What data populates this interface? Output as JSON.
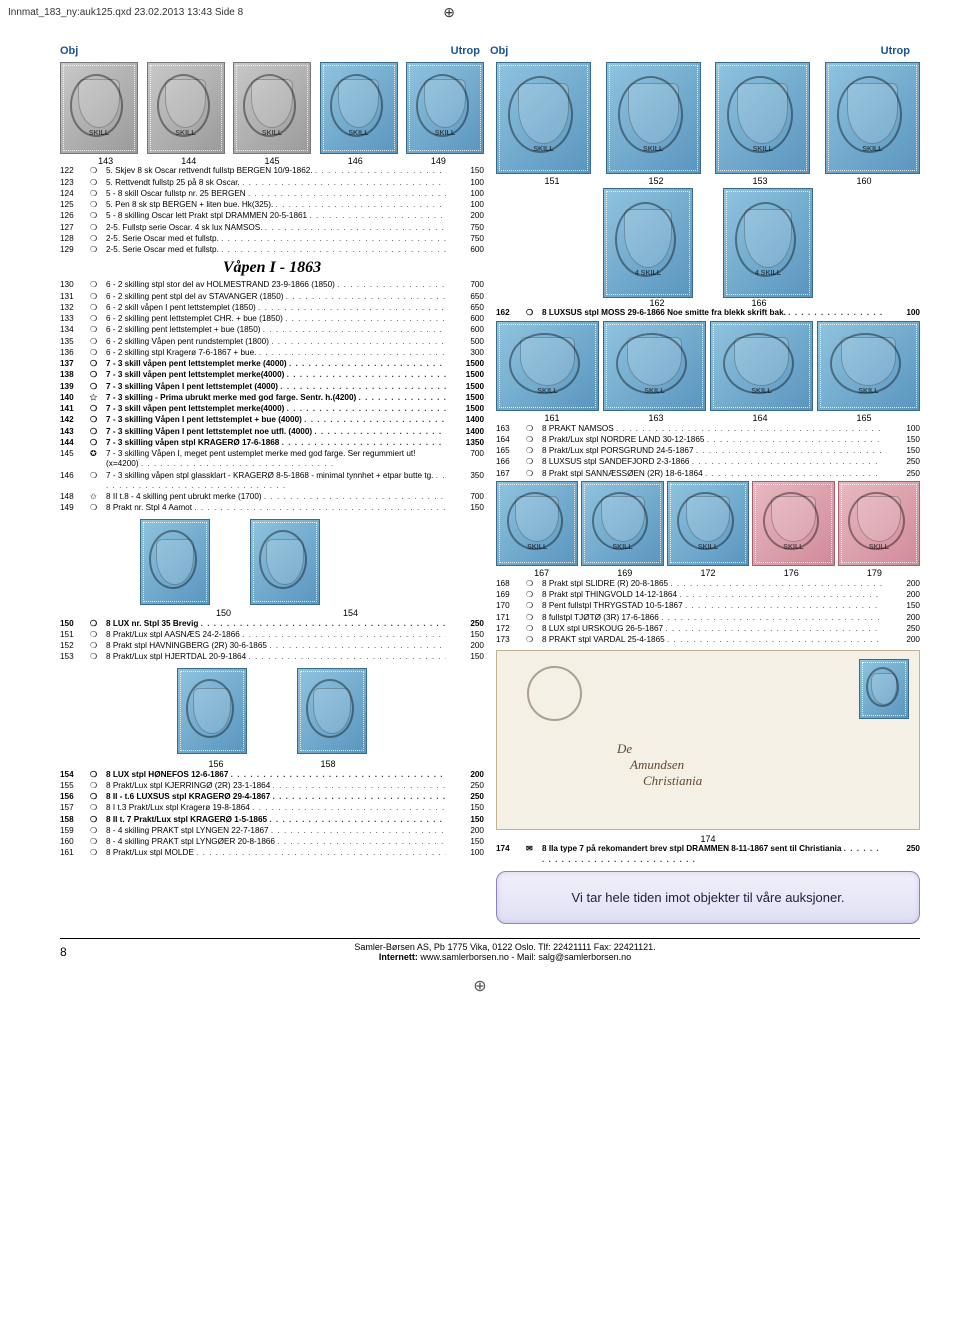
{
  "meta": {
    "filepath": "Innmat_183_ny:auk125.qxd  23.02.2013  13:43  Side 8"
  },
  "headers": {
    "obj": "Obj",
    "utrop": "Utrop"
  },
  "stamp_style": {
    "gray_bg": "#b0b0b0",
    "blue_bg": "#6fa6cc",
    "pink_bg": "#d896a4",
    "border": "#4a6a8a"
  },
  "top_left_row": {
    "labels": [
      "143",
      "144",
      "145",
      "146",
      "149"
    ],
    "colors": [
      "gray",
      "gray",
      "gray",
      "blue",
      "blue"
    ]
  },
  "top_right_row": {
    "labels": [
      "151",
      "152",
      "153",
      "160"
    ],
    "colors": [
      "blue",
      "blue",
      "blue",
      "blue"
    ]
  },
  "section_title": "Våpen I - 1863",
  "lots_left_a": [
    {
      "n": "122",
      "s": "❍",
      "d": "5. Skjev 8 sk Oscar rettvendt fullstp BERGEN 10/9-1862.",
      "p": "150",
      "b": false
    },
    {
      "n": "123",
      "s": "❍",
      "d": "5. Rettvendt fullstp 25 på 8 sk Oscar.",
      "p": "100",
      "b": false
    },
    {
      "n": "124",
      "s": "❍",
      "d": "5 - 8 skill Oscar  fullstp nr. 25 BERGEN",
      "p": "100",
      "b": false
    },
    {
      "n": "125",
      "s": "❍",
      "d": "5. Pen 8 sk stp BERGEN + liten bue. Hk(325).",
      "p": "100",
      "b": false
    },
    {
      "n": "126",
      "s": "❍",
      "d": "5 - 8 skilling Oscar lett Prakt stpl DRAMMEN 20-5-1861",
      "p": "200",
      "b": false
    },
    {
      "n": "127",
      "s": "❍",
      "d": "2-5. Fullstp serie Oscar. 4 sk lux NAMSOS.",
      "p": "750",
      "b": false
    },
    {
      "n": "128",
      "s": "❍",
      "d": "2-5. Serie Oscar med et fullstp.",
      "p": "750",
      "b": false
    },
    {
      "n": "129",
      "s": "❍",
      "d": "2-5. Serie Oscar med et fullstp.",
      "p": "600",
      "b": false
    }
  ],
  "lots_left_b": [
    {
      "n": "130",
      "s": "❍",
      "d": "6 - 2 skilling stpl stor del av HOLMESTRAND 23-9-1866 (1850)",
      "p": "700",
      "b": false
    },
    {
      "n": "131",
      "s": "❍",
      "d": "6 - 2 skilling pent stpl del av STAVANGER (1850)",
      "p": "650",
      "b": false
    },
    {
      "n": "132",
      "s": "❍",
      "d": "6 - 2 skill våpen I pent lettstemplet (1850)",
      "p": "650",
      "b": false
    },
    {
      "n": "133",
      "s": "❍",
      "d": "6 - 2 skilling pent lettstemplet CHR. + bue (1850)",
      "p": "600",
      "b": false
    },
    {
      "n": "134",
      "s": "❍",
      "d": "6 - 2 skilling pent lettstemplet + bue (1850)",
      "p": "600",
      "b": false
    },
    {
      "n": "135",
      "s": "❍",
      "d": "6 - 2 skilling Våpen pent rundstemplet (1800)",
      "p": "500",
      "b": false
    },
    {
      "n": "136",
      "s": "❍",
      "d": "6 - 2 skilling stpl Kragerø 7-6-1867 + bue.",
      "p": "300",
      "b": false
    },
    {
      "n": "137",
      "s": "❍",
      "d": "7 - 3 skill våpen pent lettstemplet merke (4000)",
      "p": "1500",
      "b": true
    },
    {
      "n": "138",
      "s": "❍",
      "d": "7 - 3 skill våpen pent lettstemplet merke(4000)",
      "p": "1500",
      "b": true
    },
    {
      "n": "139",
      "s": "❍",
      "d": "7 - 3 skilling Våpen I pent lettstemplet (4000)",
      "p": "1500",
      "b": true
    },
    {
      "n": "140",
      "s": "✩",
      "d": "7 - 3 skilling - Prima ubrukt merke med god farge. Sentr. h.(4200)",
      "p": "1500",
      "b": true
    },
    {
      "n": "141",
      "s": "❍",
      "d": "7 - 3 skill våpen pent lettstemplet merke(4000)",
      "p": "1500",
      "b": true
    },
    {
      "n": "142",
      "s": "❍",
      "d": "7 - 3 skilling Våpen I pent lettstemplet + bue (4000)",
      "p": "1400",
      "b": true
    },
    {
      "n": "143",
      "s": "❍",
      "d": "7 - 3 skilling Våpen I pent lettstemplet noe utfl. (4000)",
      "p": "1400",
      "b": true
    },
    {
      "n": "144",
      "s": "❍",
      "d": "7 - 3 skilling våpen stpl KRAGERØ 17-6-1868",
      "p": "1350",
      "b": true
    },
    {
      "n": "145",
      "s": "✪",
      "d": "7 - 3 skilling Våpen I, meget pent ustemplet merke med god farge. Ser regummiert ut! (x=4200)",
      "p": "700",
      "b": false
    },
    {
      "n": "146",
      "s": "❍",
      "d": "7 - 3 skilling våpen stpl glassklart - KRAGERØ 8-5-1868 - minimal tynnhet + etpar butte tg.",
      "p": "350",
      "b": false
    },
    {
      "n": "148",
      "s": "✩",
      "d": "8 II t.8 - 4 skilling pent ubrukt merke (1700)",
      "p": "700",
      "b": false
    },
    {
      "n": "149",
      "s": "❍",
      "d": "8 Prakt nr. Stpl 4 Aamot",
      "p": "150",
      "b": false
    }
  ],
  "left_pair_labels": [
    "150",
    "154"
  ],
  "lots_left_c": [
    {
      "n": "150",
      "s": "❍",
      "d": "8 LUX nr. Stpl 35 Brevig",
      "p": "250",
      "b": true
    },
    {
      "n": "151",
      "s": "❍",
      "d": "8 Prakt/Lux stpl AASNÆS 24-2-1866",
      "p": "150",
      "b": false
    },
    {
      "n": "152",
      "s": "❍",
      "d": "8 Prakt stpl HAVNINGBERG (2R) 30-6-1865",
      "p": "200",
      "b": false
    },
    {
      "n": "153",
      "s": "❍",
      "d": "8 Prakt/Lux stpl HJERTDAL 20-9-1864",
      "p": "150",
      "b": false
    }
  ],
  "left_bottom_labels": [
    "156",
    "158"
  ],
  "lots_left_d": [
    {
      "n": "154",
      "s": "❍",
      "d": "8 LUX stpl HØNEFOS 12-6-1867",
      "p": "200",
      "b": true
    },
    {
      "n": "155",
      "s": "❍",
      "d": "8 Prakt/Lux stpl KJERRINGØ (2R) 23-1-1864",
      "p": "250",
      "b": false
    },
    {
      "n": "156",
      "s": "❍",
      "d": "8 II -  t.6 LUXSUS stpl KRAGERØ 29-4-1867",
      "p": "250",
      "b": true
    },
    {
      "n": "157",
      "s": "❍",
      "d": "8 I t.3 Prakt/Lux stpl Kragerø 19-8-1864",
      "p": "150",
      "b": false
    },
    {
      "n": "158",
      "s": "❍",
      "d": "8 II t. 7 Prakt/Lux stpl KRAGERØ 1-5-1865",
      "p": "150",
      "b": true
    },
    {
      "n": "159",
      "s": "❍",
      "d": "8 - 4 skilling PRAKT stpl LYNGEN 22-7-1867",
      "p": "200",
      "b": false
    },
    {
      "n": "160",
      "s": "❍",
      "d": "8 - 4 skilling PRAKT stpl LYNGØER 20-8-1866",
      "p": "150",
      "b": false
    },
    {
      "n": "161",
      "s": "❍",
      "d": "8 Prakt/Lux stpl MOLDE",
      "p": "100",
      "b": false
    }
  ],
  "big_pair_labels": [
    "162",
    "166"
  ],
  "lots_right_a": [
    {
      "n": "162",
      "s": "❍",
      "d": "8 LUXSUS stpl MOSS 29-6-1866 Noe smitte fra blekk skrift bak.",
      "p": "100",
      "b": true
    }
  ],
  "mid_row_labels": [
    "161",
    "163",
    "164",
    "165"
  ],
  "lots_right_b": [
    {
      "n": "163",
      "s": "❍",
      "d": "8 PRAKT NAMSOS",
      "p": "100",
      "b": false
    },
    {
      "n": "164",
      "s": "❍",
      "d": "8 Prakt/Lux stpl NORDRE LAND 30-12-1865",
      "p": "150",
      "b": false
    },
    {
      "n": "165",
      "s": "❍",
      "d": "8 Prakt/Lux stpl PORSGRUND 24-5-1867",
      "p": "150",
      "b": false
    },
    {
      "n": "166",
      "s": "❍",
      "d": "8 LUXSUS stpl SANDEFJORD 2-3-1866",
      "p": "250",
      "b": false
    },
    {
      "n": "167",
      "s": "❍",
      "d": "8 Prakt stpl SANNÆSSØEN (2R) 18-6-1864",
      "p": "250",
      "b": false
    }
  ],
  "wide_row_labels": [
    "167",
    "169",
    "172",
    "176",
    "179"
  ],
  "wide_row_colors": [
    "blue",
    "blue",
    "blue",
    "pink",
    "pink"
  ],
  "lots_right_c": [
    {
      "n": "168",
      "s": "❍",
      "d": "8 Prakt stpl SLIDRE (R) 20-8-1865",
      "p": "200",
      "b": false
    },
    {
      "n": "169",
      "s": "❍",
      "d": "8 Prakt stpl THINGVOLD 14-12-1864",
      "p": "200",
      "b": false
    },
    {
      "n": "170",
      "s": "❍",
      "d": "8 Pent fullstpl THRYGSTAD 10-5-1867",
      "p": "150",
      "b": false
    },
    {
      "n": "171",
      "s": "❍",
      "d": "8 fullstpl TJØTØ (3R) 17-6-1866",
      "p": "200",
      "b": false
    },
    {
      "n": "172",
      "s": "❍",
      "d": "8 LUX stpl URSKOUG 26-5-1867",
      "p": "250",
      "b": false
    },
    {
      "n": "173",
      "s": "❍",
      "d": "8 PRAKT stpl VARDAL 25-4-1865",
      "p": "200",
      "b": false
    }
  ],
  "env_label": "174",
  "lots_right_d": [
    {
      "n": "174",
      "s": "✉",
      "d": "8 IIa type 7 på rekomandert brev stpl DRAMMEN 8-11-1867 sent til Christiania",
      "p": "250",
      "b": true
    }
  ],
  "info_box": "Vi tar hele tiden imot objekter til våre auksjoner.",
  "footer": {
    "page": "8",
    "line1": "Samler-Børsen AS, Pb 1775 Vika, 0122 Oslo. Tlf: 22421111 Fax: 22421121.",
    "line2_a": "Internett:",
    "line2_b": " www.samlerborsen.no - Mail: salg@samlerborsen.no"
  }
}
